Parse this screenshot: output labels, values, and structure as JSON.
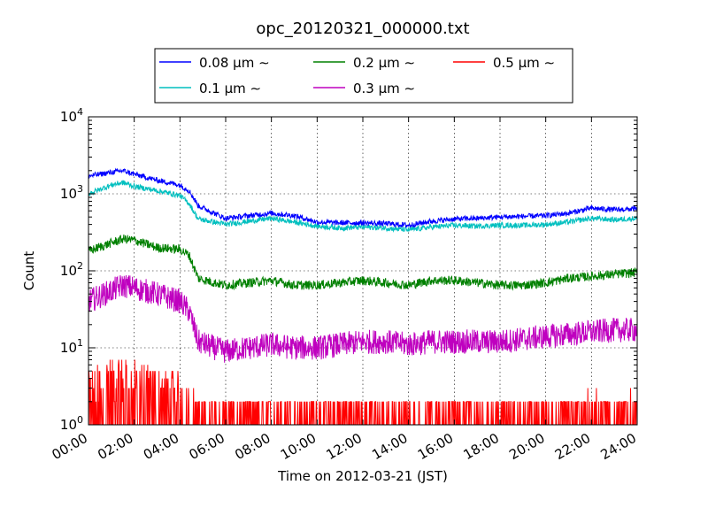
{
  "chart_data": {
    "type": "line",
    "title": "opc_20120321_000000.txt",
    "xlabel": "Time on 2012-03-21 (JST)",
    "ylabel": "Count",
    "yscale": "log",
    "grid": true,
    "legend_position": "top",
    "xlim": [
      "00:00",
      "24:00"
    ],
    "ylim": [
      1,
      10000
    ],
    "x_ticks": [
      "00:00",
      "02:00",
      "04:00",
      "06:00",
      "08:00",
      "10:00",
      "12:00",
      "14:00",
      "16:00",
      "18:00",
      "20:00",
      "22:00",
      "24:00"
    ],
    "y_ticks": [
      {
        "base": "10",
        "exp": "0"
      },
      {
        "base": "10",
        "exp": "1"
      },
      {
        "base": "10",
        "exp": "2"
      },
      {
        "base": "10",
        "exp": "3"
      },
      {
        "base": "10",
        "exp": "4"
      }
    ],
    "x_hours": [
      0,
      1,
      1.5,
      2,
      3,
      4,
      4.4,
      4.8,
      5.5,
      6,
      7,
      8,
      9,
      10,
      11,
      12,
      13,
      14,
      15,
      16,
      17,
      18,
      19,
      20,
      21,
      22,
      23,
      24
    ],
    "series": [
      {
        "name": "0.08 μm ∼",
        "color": "#0000ff",
        "values": [
          1700,
          1900,
          2000,
          1800,
          1500,
          1300,
          1100,
          700,
          560,
          480,
          520,
          560,
          520,
          430,
          420,
          420,
          410,
          390,
          440,
          470,
          480,
          500,
          510,
          520,
          560,
          650,
          620,
          640
        ]
      },
      {
        "name": "0.1 μm ∼",
        "color": "#00bfbf",
        "values": [
          1000,
          1300,
          1400,
          1250,
          1100,
          950,
          750,
          470,
          430,
          400,
          440,
          480,
          430,
          380,
          360,
          370,
          360,
          340,
          370,
          390,
          380,
          390,
          390,
          400,
          430,
          480,
          460,
          480
        ]
      },
      {
        "name": "0.2 μm ∼",
        "color": "#008000",
        "values": [
          180,
          230,
          260,
          250,
          200,
          190,
          160,
          80,
          70,
          65,
          70,
          75,
          65,
          65,
          70,
          75,
          70,
          65,
          75,
          75,
          70,
          65,
          65,
          70,
          80,
          85,
          90,
          95
        ]
      },
      {
        "name": "0.3 μm ∼",
        "color": "#bf00bf",
        "values": [
          40,
          55,
          65,
          60,
          50,
          40,
          30,
          12,
          10,
          9,
          10,
          11,
          10,
          10,
          11,
          12,
          12,
          11,
          12,
          12,
          12,
          12,
          13,
          14,
          15,
          16,
          17,
          17
        ]
      },
      {
        "name": "0.5 μm ∼",
        "color": "#ff0000",
        "values": [
          3,
          4,
          4,
          4,
          3,
          2.5,
          2,
          1.4,
          1.3,
          1.3,
          1.3,
          1.3,
          1.3,
          1.3,
          1.3,
          1.3,
          1.3,
          1.3,
          1.3,
          1.3,
          1.3,
          1.3,
          1.3,
          1.3,
          1.4,
          1.4,
          1.4,
          1.4
        ]
      }
    ]
  }
}
